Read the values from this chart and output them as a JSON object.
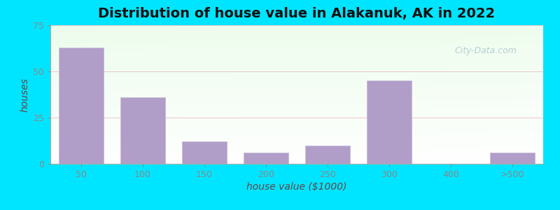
{
  "title": "Distribution of house value in Alakanuk, AK in 2022",
  "xlabel": "house value ($1000)",
  "ylabel": "houses",
  "categories": [
    "50",
    "100",
    "150",
    "200",
    "250",
    "300",
    "400",
    ">500"
  ],
  "values": [
    63,
    36,
    12,
    6,
    10,
    45,
    0,
    6
  ],
  "bar_color": "#b09ec8",
  "bar_edgecolor": "#c8bcd8",
  "background_outer": "#00e5ff",
  "ylim": [
    0,
    75
  ],
  "yticks": [
    0,
    25,
    50,
    75
  ],
  "grid_color": "#e8b8c0",
  "grid_alpha": 0.8,
  "title_fontsize": 14,
  "axis_label_fontsize": 10,
  "tick_fontsize": 9,
  "bar_width": 0.72,
  "watermark": "City-Data.com",
  "watermark_color": "#aec6cf",
  "watermark_fontsize": 9
}
